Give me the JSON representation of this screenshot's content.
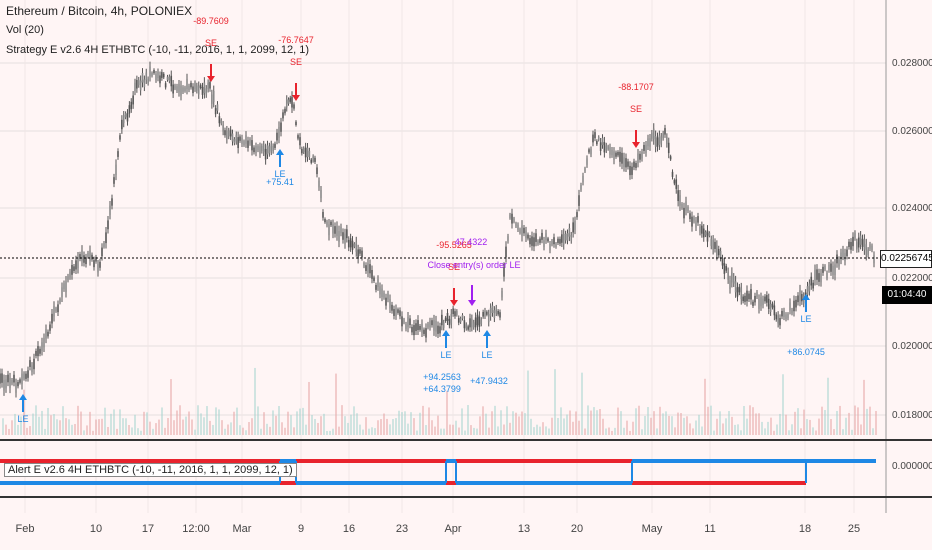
{
  "legend": {
    "symbol": "Ethereum / Bitcoin, 4h, POLONIEX",
    "volume": "Vol (20)",
    "strategy": "Strategy E v2.6 4H ETHBTC (-10, -11, 2016, 1, 1, 2099, 12, 1)"
  },
  "price_axis": {
    "ticks": [
      "0.02800000",
      "0.02600000",
      "0.02400000",
      "0.02200000",
      "0.02000000",
      "0.01800000"
    ],
    "current_price": "0.02256745",
    "countdown": "01:04:40"
  },
  "alert_axis": {
    "ticks": [
      "0.00000000"
    ]
  },
  "alert_pane": {
    "label": "Alert E v2.6 4H ETHBTC (-10, -11, 2016, 1, 1, 2099, 12, 1)"
  },
  "x_axis": {
    "labels": [
      "Feb",
      "10",
      "17",
      "12:00",
      "Mar",
      "9",
      "16",
      "23",
      "Apr",
      "13",
      "20",
      "May",
      "11",
      "18",
      "25"
    ]
  },
  "signals": {
    "se_label": "SE",
    "le_label": "LE",
    "close_label": "Close entry(s) order LE",
    "se_values": [
      "-89.7609",
      "-76.7647",
      "-95.5265",
      "-88.1707"
    ],
    "le_values": [
      "+75.41",
      "+86.0745",
      "+47.9432",
      "+94.2563"
    ],
    "close_value": "47.4322",
    "overlap_value": "+64.3799"
  },
  "colors": {
    "background": "#fff5f5",
    "candles": "#555555",
    "short": "#e8232d",
    "long": "#1e88e5",
    "close": "#a020f0"
  }
}
